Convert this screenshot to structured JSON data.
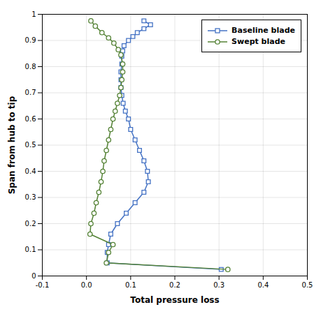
{
  "chart_data": {
    "type": "line",
    "xlabel": "Total pressure loss",
    "ylabel": "Span from hub to tip",
    "series": [
      {
        "name": "Baseline blade",
        "color": "#4472C4",
        "marker": "square",
        "line_style": "solid",
        "x": [
          0.13,
          0.145,
          0.13,
          0.115,
          0.105,
          0.095,
          0.085,
          0.082,
          0.08,
          0.08,
          0.078,
          0.078,
          0.078,
          0.08,
          0.083,
          0.088,
          0.095,
          0.1,
          0.11,
          0.12,
          0.13,
          0.138,
          0.14,
          0.13,
          0.11,
          0.09,
          0.07,
          0.055,
          0.05,
          0.047,
          0.047,
          0.305
        ],
        "values": [
          0.975,
          0.96,
          0.945,
          0.93,
          0.915,
          0.9,
          0.88,
          0.86,
          0.84,
          0.81,
          0.78,
          0.75,
          0.72,
          0.69,
          0.66,
          0.63,
          0.6,
          0.56,
          0.52,
          0.48,
          0.44,
          0.4,
          0.36,
          0.32,
          0.28,
          0.24,
          0.2,
          0.16,
          0.12,
          0.09,
          0.05,
          0.025
        ]
      },
      {
        "name": "Swept blade",
        "color": "#548235",
        "marker": "circle",
        "line_style": "solid",
        "x": [
          0.01,
          0.02,
          0.035,
          0.05,
          0.062,
          0.072,
          0.078,
          0.082,
          0.082,
          0.08,
          0.078,
          0.075,
          0.07,
          0.065,
          0.06,
          0.055,
          0.05,
          0.045,
          0.04,
          0.037,
          0.033,
          0.028,
          0.022,
          0.017,
          0.01,
          0.008,
          0.06,
          0.05,
          0.045,
          0.32
        ],
        "values": [
          0.975,
          0.955,
          0.93,
          0.91,
          0.89,
          0.865,
          0.845,
          0.81,
          0.78,
          0.75,
          0.72,
          0.69,
          0.66,
          0.63,
          0.6,
          0.56,
          0.52,
          0.48,
          0.44,
          0.4,
          0.36,
          0.32,
          0.28,
          0.24,
          0.2,
          0.16,
          0.12,
          0.09,
          0.05,
          0.025
        ]
      }
    ],
    "xlim": [
      -0.1,
      0.5
    ],
    "ylim": [
      0,
      1
    ],
    "xticks": [
      -0.1,
      {
        "value": 0,
        "label": "0.0"
      },
      0.1,
      0.2,
      0.3,
      0.4,
      0.5
    ],
    "yticks": [
      0,
      0.1,
      0.2,
      0.3,
      0.4,
      0.5,
      0.6,
      0.7,
      0.8,
      0.9,
      1
    ],
    "grid": true,
    "legend": "upper right"
  }
}
